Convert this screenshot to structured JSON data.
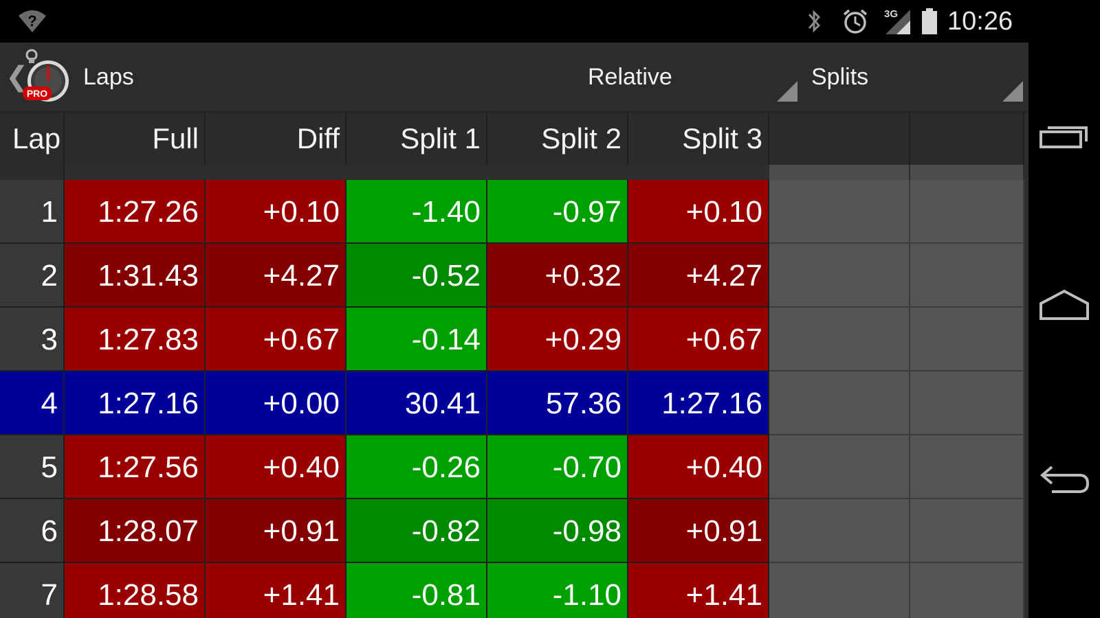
{
  "status_bar": {
    "time": "10:26",
    "signal_label": "3G",
    "icons": [
      "wifi-question-icon",
      "bluetooth-icon",
      "alarm-icon",
      "signal-3g-icon",
      "battery-icon"
    ]
  },
  "action_bar": {
    "title": "Laps",
    "logo_badge": "PRO",
    "mode_selected": "Relative",
    "view_selected": "Splits"
  },
  "table": {
    "headers": [
      "Lap",
      "Full",
      "Diff",
      "Split 1",
      "Split 2",
      "Split 3",
      "",
      ""
    ],
    "rows": [
      {
        "lap": "1",
        "full": "1:27.26",
        "diff": "+0.10",
        "split1": "-1.40",
        "split2": "-0.97",
        "split3": "+0.10"
      },
      {
        "lap": "2",
        "full": "1:31.43",
        "diff": "+4.27",
        "split1": "-0.52",
        "split2": "+0.32",
        "split3": "+4.27"
      },
      {
        "lap": "3",
        "full": "1:27.83",
        "diff": "+0.67",
        "split1": "-0.14",
        "split2": "+0.29",
        "split3": "+0.67"
      },
      {
        "lap": "4",
        "full": "1:27.16",
        "diff": "+0.00",
        "split1": "30.41",
        "split2": "57.36",
        "split3": "1:27.16"
      },
      {
        "lap": "5",
        "full": "1:27.56",
        "diff": "+0.40",
        "split1": "-0.26",
        "split2": "-0.70",
        "split3": "+0.40"
      },
      {
        "lap": "6",
        "full": "1:28.07",
        "diff": "+0.91",
        "split1": "-0.82",
        "split2": "-0.98",
        "split3": "+0.91"
      },
      {
        "lap": "7",
        "full": "1:28.58",
        "diff": "+1.41",
        "split1": "-0.81",
        "split2": "-1.10",
        "split3": "+1.41"
      }
    ]
  },
  "colors": {
    "slower": "#9a0000",
    "slower_alt": "#840000",
    "faster": "#00a000",
    "faster_alt": "#008a00",
    "best_lap": "#000099"
  },
  "nav_bar": {
    "icons": [
      "recents-icon",
      "home-icon",
      "back-icon"
    ]
  }
}
